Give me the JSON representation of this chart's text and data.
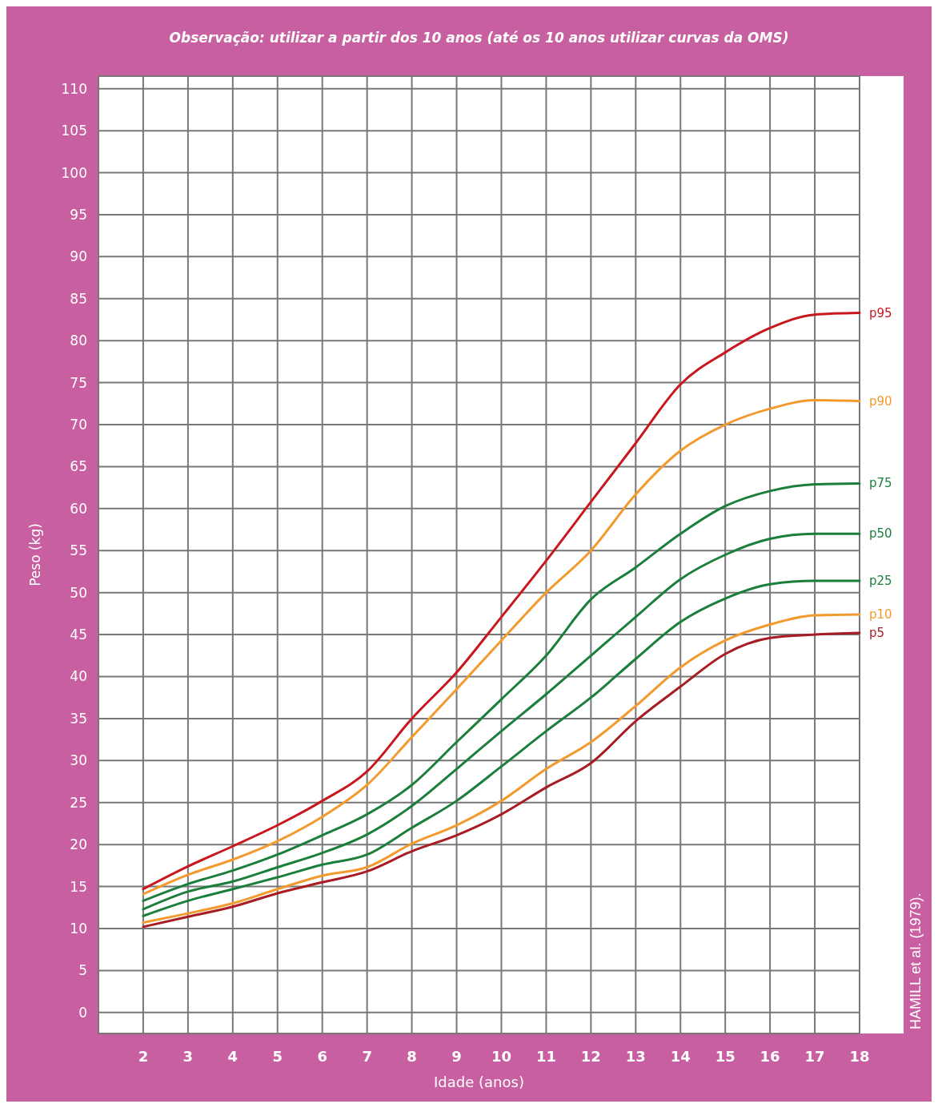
{
  "chart_data": {
    "type": "line",
    "title": "Observação: utilizar a partir dos 10 anos (até os 10 anos utilizar curvas da OMS)",
    "xlabel": "Idade (anos)",
    "ylabel": "Peso (kg)",
    "annotations": [
      "HAMILL et al. (1979)."
    ],
    "x": [
      2,
      3,
      4,
      5,
      6,
      7,
      8,
      9,
      10,
      11,
      12,
      13,
      14,
      15,
      16,
      17,
      18
    ],
    "xlim": [
      1,
      18
    ],
    "xticks": [
      2,
      3,
      4,
      5,
      6,
      7,
      8,
      9,
      10,
      11,
      12,
      13,
      14,
      15,
      16,
      17,
      18
    ],
    "ylim": [
      -2.5,
      111.5
    ],
    "yticks": [
      0,
      5,
      10,
      15,
      20,
      25,
      30,
      35,
      40,
      45,
      50,
      55,
      60,
      65,
      70,
      75,
      80,
      85,
      90,
      95,
      100,
      105,
      110
    ],
    "grid": true,
    "legend": false,
    "marker": "none",
    "line_style": "solid",
    "series": [
      {
        "name": "p95",
        "color": "#c8171f",
        "values": [
          14.7,
          17.4,
          19.8,
          22.3,
          25.2,
          28.7,
          35.0,
          40.5,
          47.1,
          53.8,
          60.8,
          67.8,
          74.8,
          78.6,
          81.5,
          83.1,
          83.3
        ]
      },
      {
        "name": "p90",
        "color": "#f29a2e",
        "values": [
          14.1,
          16.4,
          18.2,
          20.4,
          23.3,
          27.1,
          32.8,
          38.5,
          44.3,
          50.0,
          55.0,
          61.7,
          66.9,
          70.0,
          71.9,
          72.9,
          72.8
        ]
      },
      {
        "name": "p75",
        "color": "#1b7f3b",
        "values": [
          13.3,
          15.3,
          16.9,
          18.8,
          21.1,
          23.6,
          27.1,
          32.2,
          37.3,
          42.5,
          49.2,
          53.0,
          57.0,
          60.3,
          62.1,
          62.9,
          63.0
        ]
      },
      {
        "name": "p50",
        "color": "#1b7f3b",
        "values": [
          12.3,
          14.4,
          15.6,
          17.3,
          19.0,
          21.2,
          24.6,
          29.0,
          33.5,
          37.9,
          42.5,
          47.1,
          51.6,
          54.5,
          56.4,
          57.0,
          57.0
        ]
      },
      {
        "name": "p25",
        "color": "#1b7f3b",
        "values": [
          11.5,
          13.3,
          14.7,
          16.1,
          17.6,
          18.8,
          22.0,
          25.2,
          29.3,
          33.5,
          37.5,
          42.1,
          46.5,
          49.3,
          51.0,
          51.4,
          51.4
        ]
      },
      {
        "name": "p10",
        "color": "#f29a2e",
        "values": [
          10.7,
          11.8,
          13.0,
          14.7,
          16.3,
          17.3,
          20.1,
          22.3,
          25.2,
          29.0,
          32.2,
          36.5,
          41.1,
          44.3,
          46.2,
          47.3,
          47.4
        ]
      },
      {
        "name": "p5",
        "color": "#a81c24",
        "values": [
          10.2,
          11.4,
          12.6,
          14.2,
          15.5,
          16.8,
          19.2,
          21.1,
          23.6,
          26.8,
          29.7,
          34.7,
          38.8,
          42.7,
          44.6,
          45.0,
          45.2
        ]
      }
    ]
  }
}
